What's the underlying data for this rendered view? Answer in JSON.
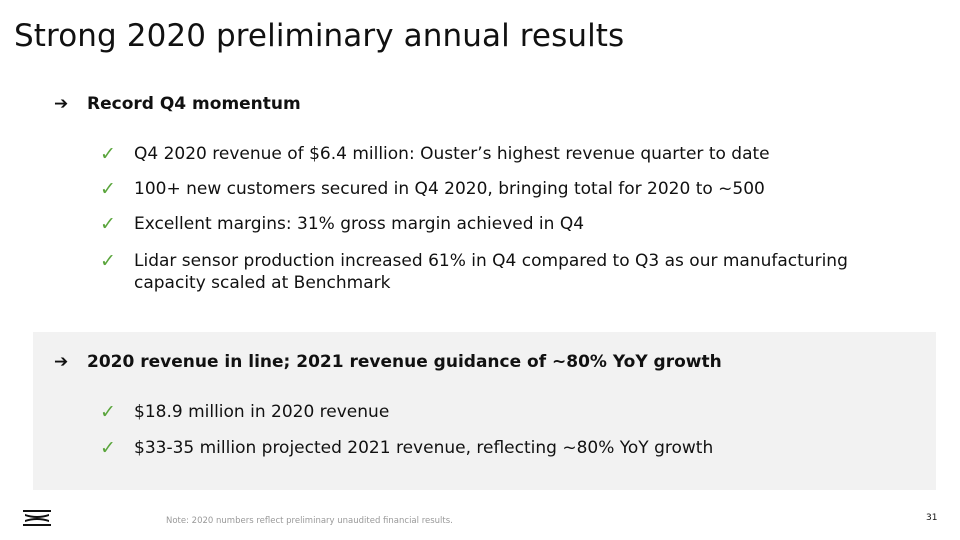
{
  "slide": {
    "title": "Strong 2020 preliminary annual results",
    "sections": [
      {
        "heading": "Record Q4 momentum",
        "bullets": [
          "Q4 2020 revenue of $6.4 million: Ouster’s highest revenue quarter to date",
          "100+ new customers secured in Q4 2020, bringing total for 2020 to ~500",
          "Excellent margins: 31% gross margin achieved in Q4",
          "Lidar sensor production increased 61% in Q4 compared to Q3 as our manufacturing capacity scaled at Benchmark"
        ]
      },
      {
        "heading": "2020 revenue in line; 2021 revenue guidance of ~80% YoY growth",
        "bullets": [
          "$18.9 million in 2020 revenue",
          "$33-35 million projected 2021 revenue, reflecting ~80% YoY growth"
        ]
      }
    ],
    "note": "Note: 2020 numbers reflect preliminary unaudited financial results.",
    "page_number": "31",
    "icons": {
      "arrow": "arrow-right-icon",
      "check": "checkmark-icon",
      "logo": "ouster-logo"
    },
    "colors": {
      "check": "#5aa53c",
      "panel": "#f2f2f2",
      "note": "#999999"
    }
  }
}
